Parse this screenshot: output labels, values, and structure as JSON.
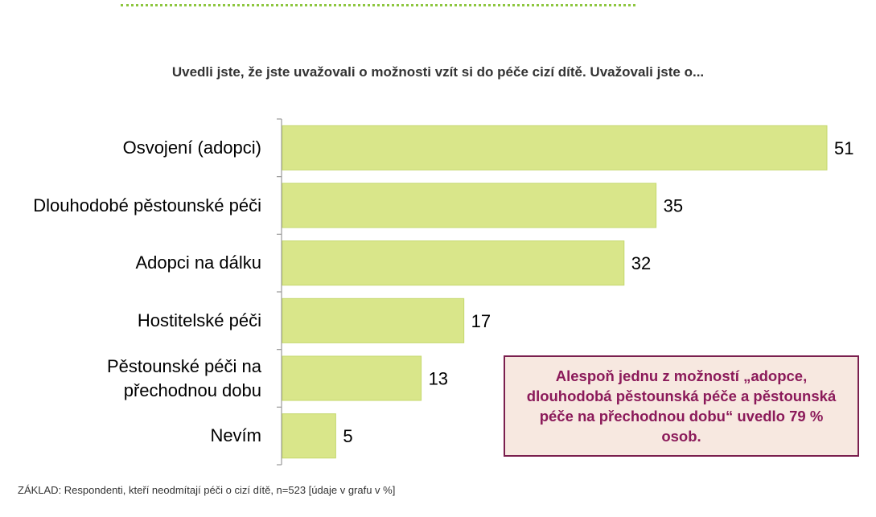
{
  "chart_data": {
    "type": "bar",
    "orientation": "horizontal",
    "title": "Uvedli jste, že jste uvažovali o možnosti vzít si do péče cizí dítě. Uvažovali jste o...",
    "categories": [
      "Osvojení (adopci)",
      "Dlouhodobé pěstounské péči",
      "Adopci na dálku",
      "Hostitelské péči",
      "Pěstounské péči na přechodnou dobu",
      "Nevím"
    ],
    "values": [
      51,
      35,
      32,
      17,
      13,
      5
    ],
    "xlim": [
      0,
      51
    ],
    "grid": false,
    "bar_color": "#d9e68a",
    "bar_border_color": "#c5d86d",
    "axis_color": "#999999"
  },
  "callout": {
    "text": "Alespoň jednu z možností „adopce, dlouhodobá pěstounská péče a pěstounská péče na přechodnou dobu“ uvedlo 79 % osob.",
    "text_color": "#8b1a5a",
    "background": "#f7e8e0",
    "border_color": "#7a1f4e"
  },
  "footnote": "ZÁKLAD: Respondenti, kteří neodmítají péči o cizí dítě, n=523 [údaje v grafu v %]"
}
